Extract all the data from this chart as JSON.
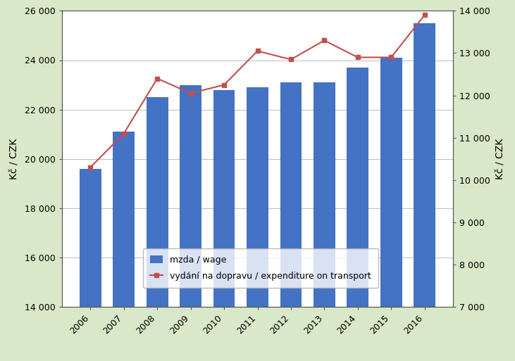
{
  "years": [
    2006,
    2007,
    2008,
    2009,
    2010,
    2011,
    2012,
    2013,
    2014,
    2015,
    2016
  ],
  "wage": [
    19600,
    21100,
    22500,
    23000,
    22800,
    22900,
    23100,
    23100,
    23700,
    24100,
    25500
  ],
  "transport": [
    10300,
    11100,
    12400,
    12050,
    12250,
    13050,
    12850,
    13300,
    12900,
    12900,
    13900
  ],
  "bar_color": "#4472C4",
  "line_color": "#C0504D",
  "marker_color": "#C0504D",
  "background_color": "#D9E8C8",
  "plot_background": "#FFFFFF",
  "ylabel_left": "Kč / CZK",
  "ylabel_right": "Kč / CZK",
  "ylim_left": [
    14000,
    26000
  ],
  "ylim_right": [
    7000,
    14000
  ],
  "yticks_left": [
    14000,
    16000,
    18000,
    20000,
    22000,
    24000,
    26000
  ],
  "yticks_right": [
    7000,
    8000,
    9000,
    10000,
    11000,
    12000,
    13000,
    14000
  ],
  "legend_wage": "mzda / wage",
  "legend_transport": "vydání na dopravu / expenditure on transport"
}
